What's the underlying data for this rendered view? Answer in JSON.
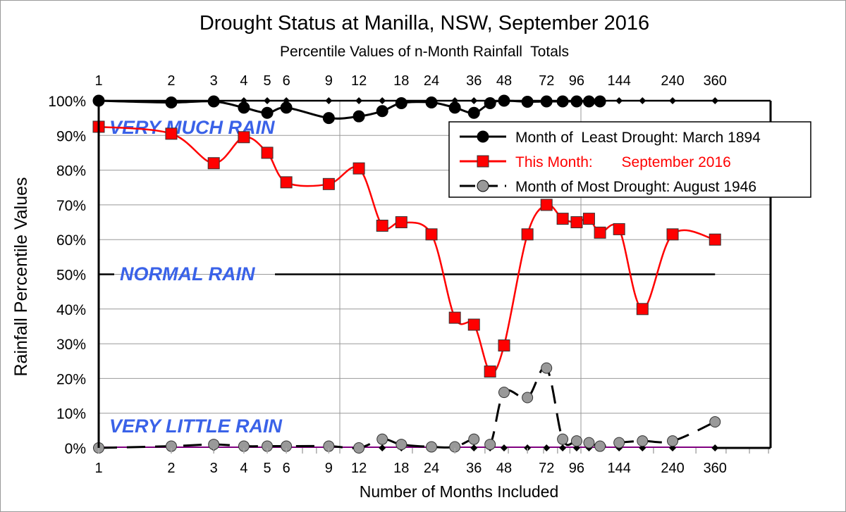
{
  "chart_data": {
    "type": "line",
    "title": "Drought Status at Manilla, NSW, September 2016",
    "subtitle": "Percentile Values of n-Month Rainfall  Totals",
    "xlabel": "Number of Months Included",
    "ylabel": "Rainfall Percentile Values",
    "x_scale": "log",
    "xlim": [
      1,
      600
    ],
    "ylim": [
      0,
      100
    ],
    "x_tick_labels": [
      1,
      2,
      3,
      4,
      5,
      6,
      9,
      12,
      18,
      24,
      36,
      48,
      72,
      96,
      144,
      240,
      360
    ],
    "y_ticks": [
      0,
      10,
      20,
      30,
      40,
      50,
      60,
      70,
      80,
      90,
      100
    ],
    "y_tick_suffix": "%",
    "grid": "horizontal every 10%, vertical at 10 and 100",
    "legend_position": "top-right",
    "x": [
      1,
      2,
      3,
      4,
      5,
      6,
      9,
      12,
      15,
      18,
      24,
      30,
      36,
      42,
      48,
      60,
      72,
      84,
      96,
      108,
      120,
      144,
      180,
      240,
      360
    ],
    "series": [
      {
        "name": "Month of  Least Drought: March 1894",
        "color": "#000000",
        "marker": "circle",
        "values": [
          100,
          99.5,
          99.8,
          98,
          96.5,
          98,
          95,
          95.5,
          97,
          99.3,
          99.5,
          98,
          96.5,
          99.3,
          100,
          99.7,
          99.8,
          99.8,
          99.8,
          99.8,
          99.8,
          null,
          null,
          null,
          null
        ]
      },
      {
        "name": "This Month:       September 2016",
        "color": "#ff0000",
        "marker": "square",
        "values": [
          92.5,
          90.5,
          82,
          89.5,
          85,
          76.5,
          76,
          80.5,
          64,
          65,
          61.5,
          37.5,
          35.5,
          22,
          29.5,
          61.5,
          70,
          66,
          65,
          66,
          62,
          63,
          40,
          61.5,
          60
        ]
      },
      {
        "name": "Month of Most Drought: August 1946",
        "color": "#999999",
        "marker": "circle",
        "dashed": true,
        "values": [
          0,
          0.5,
          1,
          0.5,
          0.5,
          0.5,
          0.5,
          0,
          2.5,
          1,
          0.3,
          0.3,
          2.5,
          1,
          16,
          14.5,
          23,
          2.5,
          2,
          1.5,
          0.5,
          1.5,
          2,
          2,
          7.5
        ]
      }
    ],
    "reference_line": {
      "value": 50,
      "color": "#000000"
    },
    "annotations": [
      {
        "text": "VERY MUCH RAIN",
        "color": "#3a62e8"
      },
      {
        "text": "NORMAL RAIN",
        "color": "#3a62e8"
      },
      {
        "text": "VERY LITTLE RAIN",
        "color": "#3a62e8"
      }
    ]
  }
}
